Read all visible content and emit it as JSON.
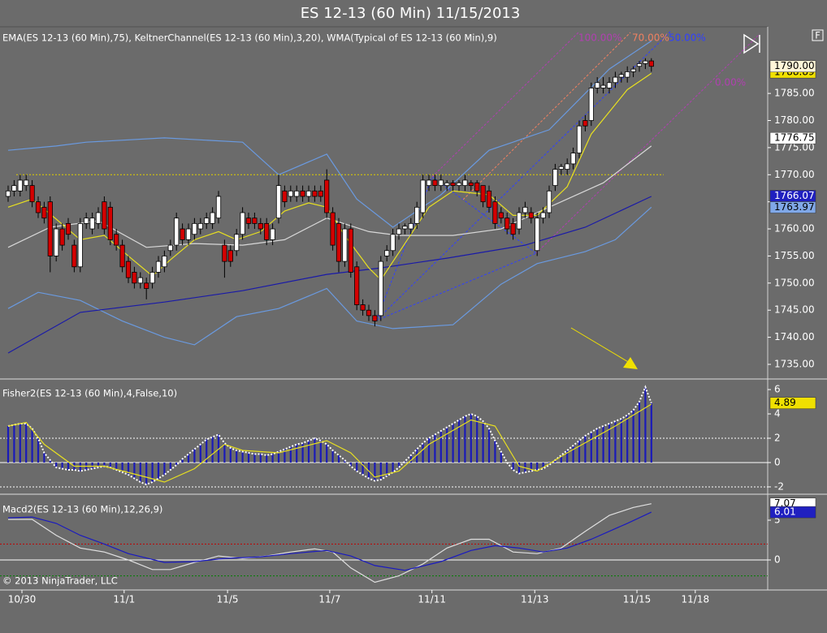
{
  "title": "ES 12-13 (60 Min)  11/15/2013",
  "toolbar_label": "F",
  "copyright": "© 2013 NinjaTrader, LLC",
  "chart_data": [
    {
      "type": "candlestick",
      "label": "EMA(ES 12-13 (60 Min),75), KeltnerChannel(ES 12-13 (60 Min),3,20), WMA(Typical of ES 12-13 (60 Min),9)",
      "xlim": [
        -1.35,
        126.35
      ],
      "ylim": [
        1732.6,
        1797.3
      ],
      "yticks": [
        {
          "value": 1735,
          "label": "1735.00"
        },
        {
          "value": 1740,
          "label": "1740.00"
        },
        {
          "value": 1745,
          "label": "1745.00"
        },
        {
          "value": 1750,
          "label": "1750.00"
        },
        {
          "value": 1755,
          "label": "1755.00"
        },
        {
          "value": 1760,
          "label": "1760.00"
        },
        {
          "value": 1765,
          "label": "1765.00"
        },
        {
          "value": 1770,
          "label": "1770.00"
        },
        {
          "value": 1775,
          "label": "1775.00"
        },
        {
          "value": 1780,
          "label": "1780.00"
        },
        {
          "value": 1785,
          "label": "1785.00"
        }
      ],
      "up_color": "#ffffff",
      "down_color": "#d40000",
      "open": [
        1766,
        1767,
        1767,
        1768,
        1768,
        1765,
        1764,
        1765,
        1755,
        1760,
        1761,
        1757,
        1753,
        1761,
        1760,
        1761,
        1765,
        1764,
        1759,
        1757,
        1754,
        1752,
        1750,
        1750,
        1750,
        1752,
        1753,
        1756,
        1757,
        1760,
        1758,
        1759,
        1760,
        1761,
        1761,
        1762,
        1757,
        1756,
        1756,
        1759,
        1762,
        1762,
        1761,
        1761,
        1758,
        1762,
        1767,
        1766,
        1766,
        1767,
        1766,
        1767,
        1767,
        1769,
        1763,
        1761,
        1754,
        1760,
        1753,
        1746,
        1745,
        1744,
        1744,
        1755,
        1756,
        1759,
        1760,
        1760,
        1761,
        1763,
        1768,
        1769,
        1768,
        1768,
        1768.5,
        1768,
        1768,
        1768.5,
        1768.5,
        1768,
        1767,
        1765,
        1763,
        1762,
        1761,
        1760,
        1763,
        1763,
        1756,
        1762,
        1763,
        1768,
        1771,
        1771,
        1772,
        1774,
        1780,
        1780,
        1786,
        1786,
        1786,
        1787,
        1788,
        1788,
        1789,
        1790,
        1790.5,
        1791
      ],
      "high": [
        1768,
        1769,
        1770,
        1770,
        1769,
        1766,
        1765,
        1766,
        1761,
        1761,
        1762,
        1758,
        1762,
        1763,
        1763,
        1764,
        1766,
        1765,
        1760,
        1758,
        1755,
        1753,
        1752,
        1751,
        1753,
        1755,
        1756,
        1758,
        1763,
        1761,
        1761,
        1762,
        1762,
        1763,
        1764,
        1767,
        1758,
        1757,
        1760,
        1764,
        1763,
        1763,
        1762,
        1762,
        1761,
        1770,
        1768,
        1768,
        1768,
        1768,
        1768,
        1768,
        1768,
        1771,
        1764,
        1762,
        1761,
        1761,
        1754,
        1747,
        1746,
        1745,
        1755,
        1757,
        1760,
        1761,
        1761,
        1762,
        1765,
        1770,
        1770,
        1770,
        1770,
        1769,
        1769,
        1769,
        1770,
        1769,
        1769,
        1768,
        1768,
        1766,
        1764,
        1763,
        1762,
        1764,
        1765,
        1764,
        1763,
        1764,
        1768,
        1772,
        1772,
        1773,
        1775,
        1780,
        1781,
        1787,
        1788,
        1788,
        1788,
        1789,
        1789,
        1790,
        1790,
        1791,
        1791.5,
        1791.5
      ],
      "low": [
        1765,
        1766,
        1766,
        1767,
        1764,
        1762,
        1761,
        1752,
        1754,
        1756,
        1758,
        1752,
        1752,
        1760,
        1759,
        1760,
        1759,
        1757,
        1756,
        1752,
        1750,
        1749,
        1749,
        1747,
        1749,
        1751,
        1752,
        1755,
        1756,
        1757,
        1757,
        1758,
        1759,
        1760,
        1760,
        1761,
        1751,
        1753,
        1755,
        1758,
        1760,
        1760,
        1759,
        1757,
        1757,
        1761,
        1764,
        1765,
        1765,
        1765,
        1765,
        1765,
        1765,
        1762,
        1756,
        1752,
        1753,
        1751,
        1745,
        1744,
        1743,
        1742,
        1743,
        1754,
        1755,
        1758,
        1759,
        1759,
        1760,
        1762,
        1767,
        1767,
        1767,
        1767,
        1767,
        1767,
        1767,
        1767,
        1766,
        1764,
        1763,
        1760,
        1761,
        1759,
        1758,
        1759,
        1762,
        1761,
        1755,
        1761,
        1762,
        1767,
        1770,
        1770,
        1771,
        1773,
        1778,
        1779,
        1785,
        1785,
        1785,
        1786,
        1787,
        1787,
        1788,
        1789,
        1789.5,
        1789
      ],
      "close": [
        1767,
        1768,
        1769,
        1769,
        1765,
        1763,
        1762,
        1755,
        1760,
        1757,
        1759,
        1753,
        1761,
        1762,
        1762,
        1763,
        1760,
        1758,
        1757,
        1753,
        1751,
        1750,
        1751,
        1749,
        1752,
        1754,
        1755,
        1757,
        1762,
        1758,
        1760,
        1761,
        1761,
        1762,
        1763,
        1766,
        1754,
        1754,
        1759,
        1763,
        1761,
        1761,
        1760,
        1758,
        1760,
        1768,
        1765,
        1767,
        1767,
        1766,
        1767,
        1766,
        1766,
        1763,
        1757,
        1754,
        1760,
        1752,
        1746,
        1745,
        1744,
        1743,
        1754,
        1756,
        1759,
        1760,
        1760.5,
        1761,
        1764,
        1769,
        1769,
        1768,
        1769,
        1768.5,
        1768,
        1768.5,
        1769,
        1768,
        1767,
        1765,
        1764,
        1761,
        1762,
        1760,
        1759,
        1763,
        1764,
        1762,
        1762,
        1763,
        1767,
        1771,
        1771.5,
        1772,
        1774,
        1779,
        1779,
        1786,
        1787,
        1786.5,
        1787,
        1788,
        1788.5,
        1789,
        1789.5,
        1790.5,
        1791,
        1790
      ],
      "lines": [
        {
          "color": "#6a9ae0",
          "x": [
            0,
            8,
            13,
            26,
            39,
            45,
            53,
            58,
            64,
            72,
            80,
            90,
            100,
            107
          ],
          "values": [
            1774.5,
            1775.3,
            1776,
            1776.8,
            1776,
            1770,
            1773.8,
            1765.5,
            1760.3,
            1766.3,
            1774.5,
            1778.3,
            1789.5,
            1794.7
          ]
        },
        {
          "color": "#6a9ae0",
          "x": [
            0,
            5,
            12,
            19,
            26,
            31,
            38,
            45,
            53,
            58,
            64,
            74,
            82,
            88,
            96,
            101,
            107
          ],
          "values": [
            1745.3,
            1748.3,
            1746.8,
            1743,
            1740,
            1738.6,
            1743.8,
            1745.3,
            1749,
            1743,
            1741.6,
            1742.3,
            1749.8,
            1753.6,
            1755.8,
            1758,
            1764
          ]
        },
        {
          "color": "#d8d8d8",
          "x": [
            0,
            7,
            15,
            23,
            31,
            39,
            46,
            53,
            60,
            65,
            74,
            82,
            90,
            99,
            107
          ],
          "values": [
            1756.6,
            1760.3,
            1761.5,
            1756.6,
            1757.3,
            1757,
            1758,
            1762,
            1759.5,
            1758.8,
            1758.8,
            1760,
            1764,
            1768.5,
            1775.3
          ]
        },
        {
          "color": "#1a1aa8",
          "x": [
            0,
            12,
            26,
            39,
            53,
            62,
            73,
            86,
            96,
            107
          ],
          "values": [
            1737.1,
            1744.6,
            1746.5,
            1748.6,
            1751.6,
            1752.8,
            1754.6,
            1757,
            1760.3,
            1766
          ]
        },
        {
          "color": "#e8e020",
          "x": [
            0,
            4,
            8,
            12,
            16,
            20,
            24,
            27,
            31,
            35,
            38,
            42,
            46,
            50,
            53,
            56,
            60,
            62,
            66,
            70,
            74,
            80,
            84,
            88,
            93,
            97,
            103,
            107
          ],
          "values": [
            1764,
            1765.5,
            1761.8,
            1758,
            1758.8,
            1755,
            1751.3,
            1754.3,
            1758,
            1759.5,
            1758,
            1759.5,
            1763.3,
            1764.8,
            1764,
            1758.8,
            1752.8,
            1750.6,
            1757.3,
            1764,
            1767,
            1766.3,
            1762.5,
            1762.5,
            1767.8,
            1777.5,
            1785.7,
            1788.7
          ]
        }
      ],
      "reference_line": {
        "value": 1770,
        "color": "#e0d000"
      },
      "price_markers": [
        {
          "value": 1788.89,
          "label": "1788.89",
          "color": "#f0e000",
          "text_color": "#000000"
        },
        {
          "value": 1790,
          "label": "1790.00",
          "color": "#fff6d8",
          "text_color": "#000000"
        },
        {
          "value": 1776.75,
          "label": "1776.75",
          "color": "#ffffff",
          "text_color": "#000000"
        },
        {
          "value": 1766.07,
          "label": "1766.07",
          "color": "#2020c0",
          "text_color": "#ffffff"
        },
        {
          "value": 1763.97,
          "label": "1763.97",
          "color": "#80a8e8",
          "text_color": "#000000"
        }
      ],
      "annotations": [
        "100.00%",
        "70.00%",
        "50.00%",
        "0.00%"
      ]
    },
    {
      "type": "bar",
      "label": "Fisher2(ES 12-13 (60 Min),4,False,10)",
      "xlim": [
        -1.35,
        126.35
      ],
      "ylim": [
        -2.47,
        6.67
      ],
      "yticks": [
        6,
        4,
        2,
        0,
        -2
      ],
      "color": "#1a1ab8",
      "line_color": "#ffffff",
      "values": [
        3.0,
        3.1,
        3.2,
        3.2,
        2.8,
        2.0,
        0.8,
        0.2,
        -0.4,
        -0.5,
        -0.6,
        -0.6,
        -0.7,
        -0.6,
        -0.5,
        -0.4,
        -0.3,
        -0.4,
        -0.6,
        -0.8,
        -1.0,
        -1.3,
        -1.6,
        -1.8,
        -1.6,
        -1.3,
        -1.0,
        -0.6,
        -0.2,
        0.3,
        0.7,
        1.1,
        1.5,
        1.9,
        2.1,
        2.3,
        1.6,
        1.2,
        1.0,
        0.9,
        0.8,
        0.7,
        0.7,
        0.6,
        0.7,
        0.9,
        1.1,
        1.3,
        1.5,
        1.6,
        1.8,
        2.0,
        1.8,
        1.5,
        1.0,
        0.6,
        0.2,
        -0.3,
        -0.7,
        -1.0,
        -1.3,
        -1.5,
        -1.4,
        -1.1,
        -0.8,
        -0.4,
        0.1,
        0.6,
        1.1,
        1.6,
        2.0,
        2.3,
        2.6,
        2.9,
        3.2,
        3.5,
        3.8,
        4.0,
        3.8,
        3.4,
        2.8,
        1.8,
        0.9,
        0.0,
        -0.6,
        -0.9,
        -0.8,
        -0.7,
        -0.6,
        -0.5,
        -0.2,
        0.2,
        0.6,
        1.0,
        1.4,
        1.8,
        2.2,
        2.5,
        2.8,
        3.0,
        3.2,
        3.4,
        3.6,
        3.9,
        4.3,
        5.0,
        6.2,
        4.89
      ],
      "lines": [
        {
          "color": "#e8e020",
          "x": [
            0,
            3,
            6,
            11,
            16,
            23,
            26,
            31,
            36,
            39,
            45,
            53,
            57,
            61,
            65,
            70,
            77,
            81,
            85,
            88,
            93,
            101,
            105,
            107
          ],
          "values": [
            3.0,
            3.3,
            1.5,
            -0.3,
            -0.3,
            -1.2,
            -1.6,
            -0.5,
            1.5,
            1.0,
            0.8,
            1.8,
            0.8,
            -1.2,
            -0.7,
            1.5,
            3.5,
            3.0,
            -0.3,
            -0.7,
            0.8,
            3.0,
            4.2,
            4.8
          ]
        }
      ],
      "levels": [
        {
          "value": 2,
          "color": "#ffffff",
          "dashed": true
        },
        {
          "value": 0,
          "color": "#ffffff",
          "dashed": false
        },
        {
          "value": -2,
          "color": "#ffffff",
          "dashed": true
        }
      ],
      "price_markers": [
        {
          "value": 4.89,
          "color": "#f0e000",
          "text_color": "#000000"
        }
      ]
    },
    {
      "type": "line",
      "label": "Macd2(ES 12-13 (60 Min),12,26,9)",
      "xlim": [
        -1.35,
        126.35
      ],
      "ylim": [
        -3.57,
        7.96
      ],
      "yticks": [
        5,
        0
      ],
      "xticks": [
        {
          "value": 2.3,
          "label": "10/30"
        },
        {
          "value": 19.3,
          "label": "11/1"
        },
        {
          "value": 36.5,
          "label": "11/5"
        },
        {
          "value": 53.5,
          "label": "11/7"
        },
        {
          "value": 70.5,
          "label": "11/11"
        },
        {
          "value": 87.6,
          "label": "11/13"
        },
        {
          "value": 104.6,
          "label": "11/15"
        },
        {
          "value": 114.3,
          "label": "11/18"
        }
      ],
      "lines": [
        {
          "color": "#e0e0e0",
          "x": [
            0,
            4,
            8,
            12,
            16,
            20,
            24,
            27,
            31,
            35,
            39,
            43,
            47,
            51,
            54,
            57,
            61,
            65,
            69,
            73,
            77,
            80,
            84,
            88,
            92,
            96,
            100,
            104,
            107
          ],
          "values": [
            5.1,
            5.1,
            3.1,
            1.5,
            1.0,
            0,
            -1.2,
            -1.2,
            -0.3,
            0.5,
            0.2,
            0.5,
            1.0,
            1.4,
            1.0,
            -1.0,
            -2.8,
            -2.0,
            -0.5,
            1.5,
            2.6,
            2.6,
            1.0,
            0.8,
            1.5,
            3.6,
            5.6,
            6.6,
            7.07
          ]
        },
        {
          "color": "#1a1ac0",
          "x": [
            0,
            4,
            8,
            12,
            16,
            20,
            26,
            31,
            36,
            42,
            47,
            53,
            57,
            61,
            66,
            72,
            77,
            81,
            85,
            89,
            93,
            97,
            103,
            107
          ],
          "values": [
            5.3,
            5.4,
            4.6,
            3.1,
            2.0,
            0.8,
            -0.3,
            -0.2,
            0.2,
            0.4,
            0.8,
            1.2,
            0.5,
            -0.7,
            -1.3,
            -0.2,
            1.2,
            1.8,
            1.5,
            1.0,
            1.5,
            2.6,
            4.6,
            6.01
          ]
        }
      ],
      "levels": [
        {
          "value": 2,
          "color": "#c00000",
          "dashed": true
        },
        {
          "value": 0,
          "color": "#ffffff",
          "dashed": false
        },
        {
          "value": -2,
          "color": "#008000",
          "dashed": true
        }
      ],
      "price_markers": [
        {
          "value": 7.07,
          "color": "#ffffff",
          "text_color": "#000000"
        },
        {
          "value": 6.01,
          "color": "#2020c0",
          "text_color": "#ffffff"
        }
      ]
    }
  ]
}
